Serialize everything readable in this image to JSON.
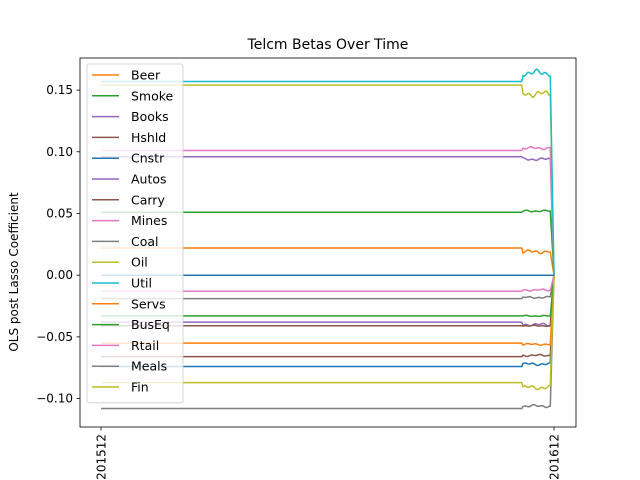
{
  "chart_data": {
    "type": "line",
    "title": "Telcm Betas Over Time",
    "xlabel": "",
    "ylabel": "OLS post Lasso Coefficient",
    "x_tick_labels": [
      "201512",
      "201612"
    ],
    "ylim": [
      -0.123,
      0.176
    ],
    "y_ticks": [
      -0.1,
      -0.05,
      0.0,
      0.05,
      0.1,
      0.15
    ],
    "y_tick_labels": [
      "−0.10",
      "−0.05",
      "0.00",
      "0.05",
      "0.10",
      "0.15"
    ],
    "grid": false,
    "legend_position": "upper-left",
    "n_points": 366,
    "series": [
      {
        "name": "Beer",
        "color": "#ff7f0e",
        "values_approx": {
          "flat": 0.022,
          "tail": 0.019
        }
      },
      {
        "name": "Smoke",
        "color": "#2ca02c",
        "values_approx": {
          "flat": 0.051,
          "tail": 0.052
        }
      },
      {
        "name": "Books",
        "color": "#9467bd",
        "values_approx": {
          "flat": -0.038,
          "tail": -0.04
        }
      },
      {
        "name": "Hshld",
        "color": "#8c564b",
        "values_approx": {
          "flat": -0.041,
          "tail": -0.041
        }
      },
      {
        "name": "Cnstr",
        "color": "#1f77b4",
        "values_approx": {
          "flat": -0.074,
          "tail": -0.072
        }
      },
      {
        "name": "Autos",
        "color": "#9467bd",
        "values_approx": {
          "flat": 0.096,
          "tail": 0.094
        }
      },
      {
        "name": "Carry",
        "color": "#8c564b",
        "values_approx": {
          "flat": -0.066,
          "tail": -0.065
        }
      },
      {
        "name": "Mines",
        "color": "#e377c2",
        "values_approx": {
          "flat": 0.101,
          "tail": 0.103
        }
      },
      {
        "name": "Coal",
        "color": "#7f7f7f",
        "values_approx": {
          "flat": -0.019,
          "tail": -0.018
        }
      },
      {
        "name": "Oil",
        "color": "#bcbd22",
        "values_approx": {
          "flat": 0.154,
          "tail": 0.147
        }
      },
      {
        "name": "Util",
        "color": "#17becf",
        "values_approx": {
          "flat": 0.157,
          "tail": 0.164
        }
      },
      {
        "name": "Servs",
        "color": "#ff7f0e",
        "values_approx": {
          "flat": -0.055,
          "tail": -0.056
        }
      },
      {
        "name": "BusEq",
        "color": "#2ca02c",
        "values_approx": {
          "flat": -0.033,
          "tail": -0.033
        }
      },
      {
        "name": "Rtail",
        "color": "#e377c2",
        "values_approx": {
          "flat": -0.013,
          "tail": -0.012
        }
      },
      {
        "name": "Meals",
        "color": "#7f7f7f",
        "values_approx": {
          "flat": -0.108,
          "tail": -0.106
        }
      },
      {
        "name": "Fin",
        "color": "#bcbd22",
        "values_approx": {
          "flat": -0.087,
          "tail": -0.091
        }
      },
      {
        "name": "",
        "color": "#17becf",
        "values_approx": {
          "flat": 0.0,
          "tail": 0.0
        }
      },
      {
        "name": "",
        "color": "#1f77b4",
        "values_approx": {
          "flat": 0.0,
          "tail": 0.0
        }
      }
    ]
  }
}
